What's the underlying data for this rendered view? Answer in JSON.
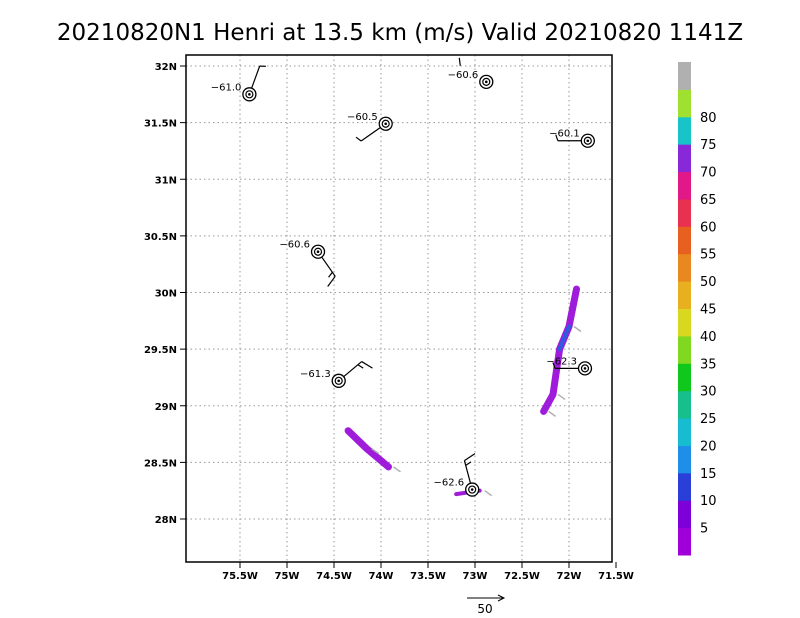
{
  "chart_data": {
    "type": "scatter",
    "title": "20210820N1 Henri at 13.5 km (m/s) Valid 20210820 1141Z",
    "x_axis": {
      "range": [
        -76.0,
        -71.5
      ],
      "ticks": [
        -75.5,
        -75.0,
        -74.5,
        -74.0,
        -73.5,
        -73.0,
        -72.5,
        -72.0,
        -71.5
      ],
      "tick_labels": [
        "75.5W",
        "75W",
        "74.5W",
        "74W",
        "73.5W",
        "73W",
        "72.5W",
        "72W",
        "71.5W"
      ]
    },
    "y_axis": {
      "range": [
        27.55,
        32.05
      ],
      "ticks": [
        28.0,
        28.5,
        29.0,
        29.5,
        30.0,
        30.5,
        31.0,
        31.5,
        32.0
      ],
      "tick_labels": [
        "28N",
        "28.5N",
        "29N",
        "29.5N",
        "30N",
        "30.5N",
        "31N",
        "31.5N",
        "32N"
      ]
    },
    "grid": true,
    "storm_centers": [
      {
        "lon": -75.4,
        "lat": 31.75,
        "label": "−61.0",
        "barb_dir": 20,
        "barb_speed": 5
      },
      {
        "lon": -73.95,
        "lat": 31.49,
        "label": "−60.5",
        "barb_dir": 235,
        "barb_speed": 5
      },
      {
        "lon": -72.88,
        "lat": 31.86,
        "label": "−60.6",
        "barb_dir": 0,
        "barb_speed": 0
      },
      {
        "lon": -71.8,
        "lat": 31.34,
        "label": "−60.1",
        "barb_dir": 270,
        "barb_speed": 5
      },
      {
        "lon": -74.67,
        "lat": 30.36,
        "label": "−60.6",
        "barb_dir": 145,
        "barb_speed": 15
      },
      {
        "lon": -74.45,
        "lat": 29.22,
        "label": "−61.3",
        "barb_dir": 50,
        "barb_speed": 15
      },
      {
        "lon": -71.83,
        "lat": 29.33,
        "label": "−62.3",
        "barb_dir": 270,
        "barb_speed": 5
      },
      {
        "lon": -73.03,
        "lat": 28.26,
        "label": "−62.6",
        "barb_dir": 345,
        "barb_speed": 15
      }
    ],
    "wind_swaths": [
      {
        "path": [
          [
            -74.35,
            28.78
          ],
          [
            -74.15,
            28.62
          ],
          [
            -73.92,
            28.46
          ]
        ],
        "max_speed": 5
      },
      {
        "path": [
          [
            -71.92,
            30.03
          ],
          [
            -72.0,
            29.7
          ],
          [
            -72.1,
            29.5
          ],
          [
            -72.17,
            29.1
          ],
          [
            -72.27,
            28.95
          ]
        ],
        "max_speed": 15
      },
      {
        "path": [
          [
            -73.2,
            28.22
          ],
          [
            -72.95,
            28.25
          ]
        ],
        "max_speed": 5
      }
    ],
    "colorbar": {
      "labels": [
        "5",
        "10",
        "15",
        "20",
        "25",
        "30",
        "35",
        "40",
        "45",
        "50",
        "55",
        "60",
        "65",
        "70",
        "75",
        "80"
      ],
      "colors": [
        "#a000d8",
        "#7e00d8",
        "#2a3fd8",
        "#1f8ee8",
        "#18bcd0",
        "#16bf8c",
        "#10c81c",
        "#80d820",
        "#d8d820",
        "#e8b020",
        "#e88820",
        "#e86020",
        "#e83050",
        "#e01888",
        "#8828d8",
        "#18c4c8",
        "#a0e030",
        "#b0b0b0"
      ]
    },
    "reference_vector": {
      "label": "50"
    }
  },
  "colors": {
    "center_marker": "#000000",
    "grid": "#9a9a9a",
    "swath_primary": "#9a10d8",
    "swath_secondary": "#2f5ae0",
    "arrow": "#b0b0b0"
  }
}
